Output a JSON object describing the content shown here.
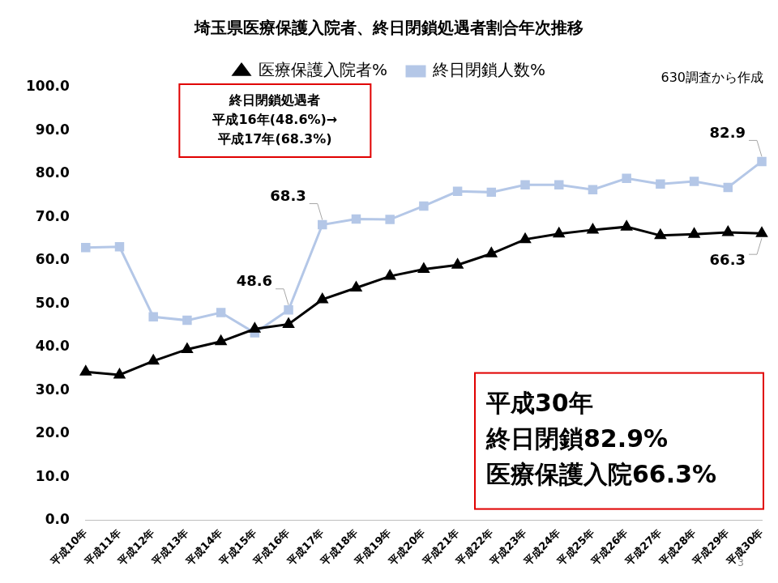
{
  "chart_data": {
    "type": "line",
    "title": "埼玉県医療保護入院者、終日閉鎖処遇者割合年次推移",
    "source": "630調査から作成",
    "page_number": "3",
    "categories": [
      "平成10年",
      "平成11年",
      "平成12年",
      "平成13年",
      "平成14年",
      "平成15年",
      "平成16年",
      "平成17年",
      "平成18年",
      "平成19年",
      "平成20年",
      "平成21年",
      "平成22年",
      "平成23年",
      "平成24年",
      "平成25年",
      "平成26年",
      "平成27年",
      "平成28年",
      "平成29年",
      "平成30年"
    ],
    "series": [
      {
        "name": "医療保護入院者%",
        "color": "#000000",
        "marker": "triangle",
        "values": [
          34.3,
          33.6,
          36.8,
          39.5,
          41.3,
          44.2,
          45.3,
          51.0,
          53.7,
          56.4,
          58.0,
          59.0,
          61.6,
          64.9,
          66.2,
          67.1,
          67.8,
          65.8,
          66.1,
          66.5,
          66.3
        ],
        "value_labels": [
          null,
          null,
          null,
          null,
          null,
          null,
          null,
          null,
          null,
          null,
          null,
          null,
          null,
          null,
          null,
          null,
          null,
          null,
          null,
          null,
          "66.3"
        ]
      },
      {
        "name": "終日閉鎖人数%",
        "color": "#b4c7e7",
        "marker": "square",
        "values": [
          63.0,
          63.2,
          47.0,
          46.2,
          48.0,
          43.3,
          48.6,
          68.3,
          69.6,
          69.5,
          72.6,
          76.0,
          75.8,
          77.5,
          77.5,
          76.4,
          79.0,
          77.7,
          78.3,
          76.9,
          82.9
        ],
        "value_labels": [
          null,
          null,
          null,
          null,
          null,
          null,
          "48.6",
          "68.3",
          null,
          null,
          null,
          null,
          null,
          null,
          null,
          null,
          null,
          null,
          null,
          null,
          "82.9"
        ]
      }
    ],
    "ylim": [
      0,
      100
    ],
    "yticks": [
      {
        "value": 0,
        "label": "0.0"
      },
      {
        "value": 10,
        "label": "10.0"
      },
      {
        "value": 20,
        "label": "20.0"
      },
      {
        "value": 30,
        "label": "30.0"
      },
      {
        "value": 40,
        "label": "40.0"
      },
      {
        "value": 50,
        "label": "50.0"
      },
      {
        "value": 60,
        "label": "60.0"
      },
      {
        "value": 70,
        "label": "70.0"
      },
      {
        "value": 80,
        "label": "80.0"
      },
      {
        "value": 90,
        "label": "90.0"
      },
      {
        "value": 100,
        "label": "100.0"
      }
    ],
    "grid": false,
    "legend": "top",
    "annotations": [
      {
        "text": [
          "終日閉鎖処遇者",
          "平成16年(48.6%)→",
          "平成17年(68.3%)"
        ]
      },
      {
        "text": [
          "平成30年",
          "終日閉鎖82.9%",
          "医療保護入院66.3%"
        ]
      }
    ]
  }
}
